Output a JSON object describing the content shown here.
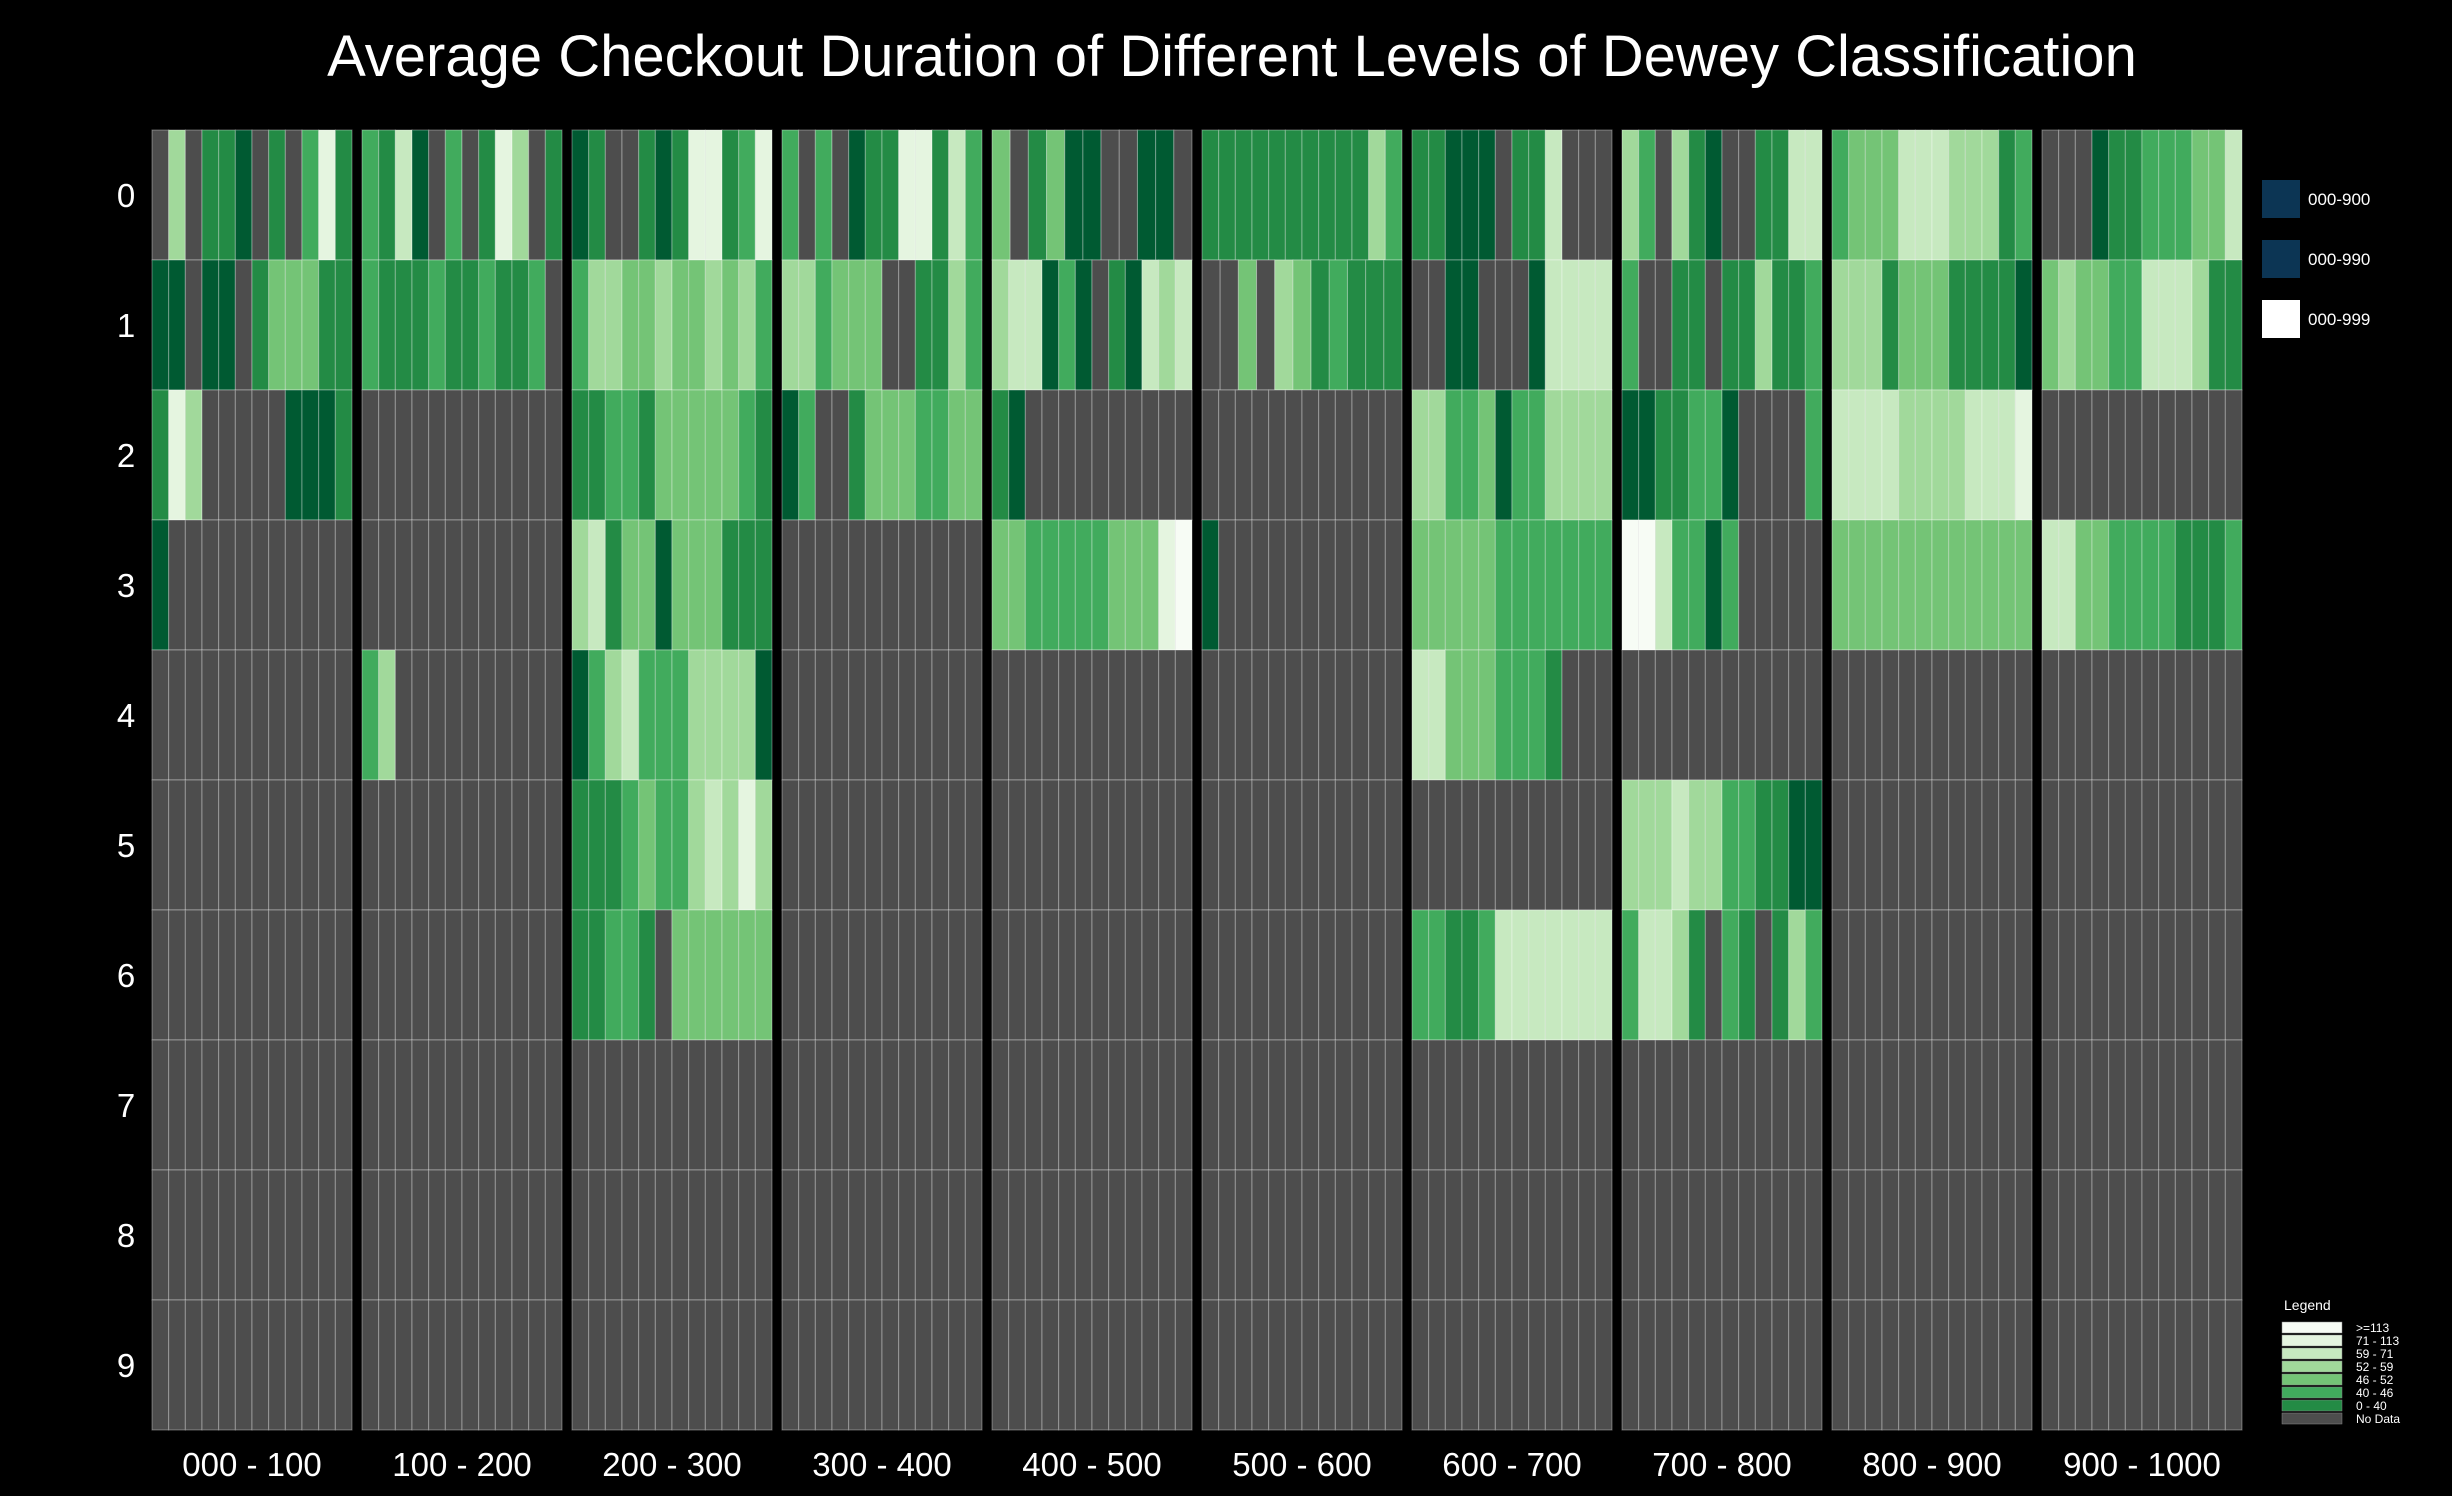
{
  "chart_data": {
    "type": "heatmap",
    "title": "Average Checkout Duration of Different Levels of Dewey Classification",
    "row_labels": [
      "0",
      "1",
      "2",
      "3",
      "4",
      "5",
      "6",
      "7",
      "8",
      "9"
    ],
    "column_labels": [
      "000 - 100",
      "100 - 200",
      "200 - 300",
      "300 - 400",
      "400 - 500",
      "500 - 600",
      "600 - 700",
      "700 - 800",
      "800 - 900",
      "900 - 1000"
    ],
    "key": [
      {
        "label": "000-900",
        "color": "#0c3554"
      },
      {
        "label": "000-990",
        "color": "#0c3554"
      },
      {
        "label": "000-999",
        "color": "#ffffff"
      }
    ],
    "legend": {
      "title": "Legend",
      "bins": [
        {
          "label": ">=113",
          "color": "#f7fcf5"
        },
        {
          "label": "71 - 113",
          "color": "#e5f5e0"
        },
        {
          "label": "59 - 71",
          "color": "#c7e9c0"
        },
        {
          "label": "52 - 59",
          "color": "#a1d99b"
        },
        {
          "label": "46 - 52",
          "color": "#74c476"
        },
        {
          "label": "40 - 46",
          "color": "#41ab5d"
        },
        {
          "label": "0 - 40",
          "color": "#238b45"
        },
        {
          "label": "No Data",
          "color": "#4d4d4d"
        }
      ],
      "darkest_color": "#005a32"
    },
    "values": [
      [
        "hdhggihghfbg",
        "fgcihfhgbdhg",
        "ighhgigbbgfb",
        "fhfhiggbbgcf",
        "ehgeiihhiih",
        "ggggggggggdf",
        "ggiiihggchhh",
        "dfhdgihhggcc",
        "feeecccdddgf",
        "hhhiggfffeec"
      ],
      [
        "iihiihgeeegg",
        "fgggfggfggfh",
        "fddeedeededf",
        "ddfeeehhggdf",
        "dccifihgicdc",
        "hhehdegfggg",
        "hhiihhhicccc",
        "fhhgghggdggf",
        "dddgeeeggggi",
        "edeeffcccdgg"
      ],
      [
        "gbdhhhhhiiig",
        "hhhhhhhhhhhh",
        "ggffgeeeeefg",
        "ifhhgeeeffee",
        "gihhhhhhhhhh",
        "hhhhhhhhhhhh",
        "ddffeiffdddd",
        "iiggffihhhhf",
        "ccccddddcccb",
        "hhhhhhhhhhhh"
      ],
      [
        "ihhhhhhhhhhh",
        "hhhhhhhhhhhh",
        "dcgeeieeeggg",
        "hhhhhhhhhhhh",
        "eefffffeeeba",
        "ihhhhhhhhhhh",
        "eeeeefffffff",
        "aacffifhhhhh",
        "eeeeeeeeeeee",
        "cceeffffgggf"
      ],
      [
        "hhhhhhhhhhhh",
        "fdhhhhhhhhhh",
        "ifdcfffddddi",
        "hhhhhhhhhhhh",
        "hhhhhhhhhhhh",
        "hhhhhhhhhhhh",
        "cceeefffghhh",
        "hhhhhhhhhhhh",
        "hhhhhhhhhhhh",
        "hhhhhhhhhhhh"
      ],
      [
        "hhhhhhhhhhhh",
        "hhhhhhhhhhhh",
        "gggfeffdcdbd",
        "hhhhhhhhhhhh",
        "hhhhhhhhhhhh",
        "hhhhhhhhhhhh",
        "hhhhhhhhhhhh",
        "dddcddffggii",
        "hhhhhhhhhhhh",
        "hhhhhhhhhhhh"
      ],
      [
        "hhhhhhhhhhhh",
        "hhhhhhhhhhhh",
        "ggffgheeeeee",
        "hhhhhhhhhhhh",
        "hhhhhhhhhhhh",
        "hhhhhhhhhhhh",
        "ffggfccccccc",
        "fccdghfghgdf",
        "hhhhhhhhhhhh",
        "hhhhhhhhhhhh"
      ],
      [
        "hhhhhhhhhhhh",
        "hhhhhhhhhhhh",
        "hhhhhhhhhhhh",
        "hhhhhhhhhhhh",
        "hhhhhhhhhhhh",
        "hhhhhhhhhhhh",
        "hhhhhhhhhhhh",
        "hhhhhhhhhhhh",
        "hhhhhhhhhhhh",
        "hhhhhhhhhhhh"
      ],
      [
        "hhhhhhhhhhhh",
        "hhhhhhhhhhhh",
        "hhhhhhhhhhhh",
        "hhhhhhhhhhhh",
        "hhhhhhhhhhhh",
        "hhhhhhhhhhhh",
        "hhhhhhhhhhhh",
        "hhhhhhhhhhhh",
        "hhhhhhhhhhhh",
        "hhhhhhhhhhhh"
      ],
      [
        "hhhhhhhhhhhh",
        "hhhhhhhhhhhh",
        "hhhhhhhhhhhh",
        "hhhhhhhhhhhh",
        "hhhhhhhhhhhh",
        "hhhhhhhhhhhh",
        "hhhhhhhhhhhh",
        "hhhhhhhhhhhh",
        "hhhhhhhhhhhh",
        "hhhhhhhhhhhh"
      ]
    ],
    "value_code": {
      "a": ">=113",
      "b": "71 - 113",
      "c": "59 - 71",
      "d": "52 - 59",
      "e": "46 - 52",
      "f": "40 - 46",
      "g": "0 - 40",
      "h": "No Data",
      "i": "0 - 40"
    }
  }
}
